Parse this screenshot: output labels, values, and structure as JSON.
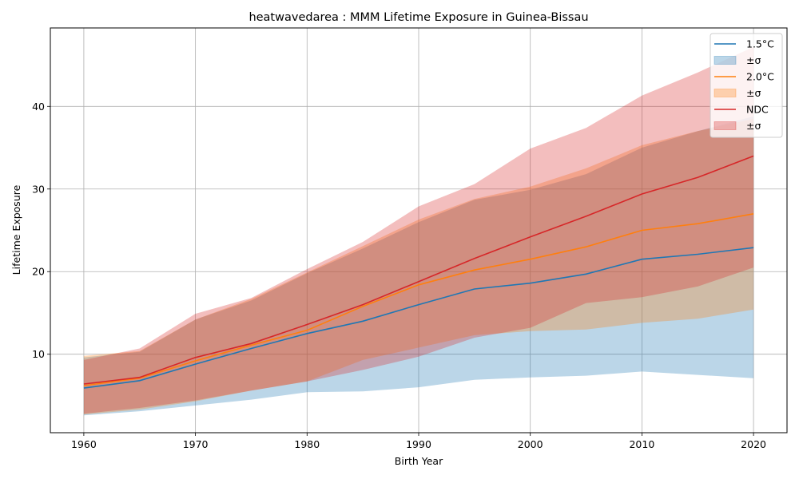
{
  "chart_data": {
    "type": "line",
    "title": "heatwavedarea : MMM Lifetime Exposure in Guinea-Bissau",
    "xlabel": "Birth Year",
    "ylabel": "Lifetime Exposure",
    "xlim": [
      1957,
      2023
    ],
    "ylim": [
      0.5,
      49.5
    ],
    "xticks": [
      1960,
      1970,
      1980,
      1990,
      2000,
      2010,
      2020
    ],
    "yticks": [
      10,
      20,
      30,
      40
    ],
    "grid": true,
    "legend_position": "upper-right",
    "x": [
      1960,
      1965,
      1970,
      1975,
      1980,
      1985,
      1990,
      1995,
      2000,
      2005,
      2010,
      2015,
      2020
    ],
    "series": [
      {
        "name": "1.5°C",
        "band_label": "±σ",
        "color": "#1f77b4",
        "band_color": "#1f77b4",
        "values": [
          5.9,
          6.8,
          8.8,
          10.7,
          12.5,
          14.0,
          16.0,
          17.9,
          18.6,
          19.7,
          21.5,
          22.1,
          22.9
        ],
        "upper": [
          9.6,
          10.3,
          14.2,
          16.5,
          19.8,
          22.8,
          26.0,
          28.7,
          29.9,
          31.8,
          35.0,
          37.0,
          38.8
        ],
        "lower": [
          2.6,
          3.1,
          3.8,
          4.5,
          5.4,
          5.5,
          6.0,
          6.9,
          7.2,
          7.4,
          7.9,
          7.5,
          7.1
        ]
      },
      {
        "name": "2.0°C",
        "band_label": "±σ",
        "color": "#ff7f0e",
        "band_color": "#ff7f0e",
        "values": [
          6.2,
          7.1,
          9.2,
          11.1,
          12.9,
          15.8,
          18.4,
          20.2,
          21.5,
          23.0,
          25.0,
          25.8,
          27.0
        ],
        "upper": [
          9.8,
          10.4,
          14.2,
          16.7,
          19.9,
          23.1,
          26.3,
          28.8,
          30.3,
          32.5,
          35.3,
          37.0,
          38.5
        ],
        "lower": [
          2.7,
          3.3,
          4.3,
          5.6,
          6.7,
          9.3,
          10.8,
          12.3,
          12.8,
          13.0,
          13.8,
          14.3,
          15.4
        ]
      },
      {
        "name": "NDC",
        "band_label": "±σ",
        "color": "#d62728",
        "band_color": "#d62728",
        "values": [
          6.4,
          7.2,
          9.6,
          11.3,
          13.6,
          16.0,
          18.8,
          21.6,
          24.2,
          26.7,
          29.4,
          31.4,
          34.0
        ],
        "upper": [
          9.3,
          10.7,
          14.9,
          16.8,
          20.3,
          23.6,
          27.9,
          30.6,
          34.9,
          37.4,
          41.3,
          44.1,
          47.2
        ],
        "lower": [
          2.8,
          3.5,
          4.4,
          5.6,
          6.7,
          8.1,
          9.7,
          12.0,
          13.2,
          16.2,
          16.9,
          18.2,
          20.5
        ]
      }
    ]
  }
}
